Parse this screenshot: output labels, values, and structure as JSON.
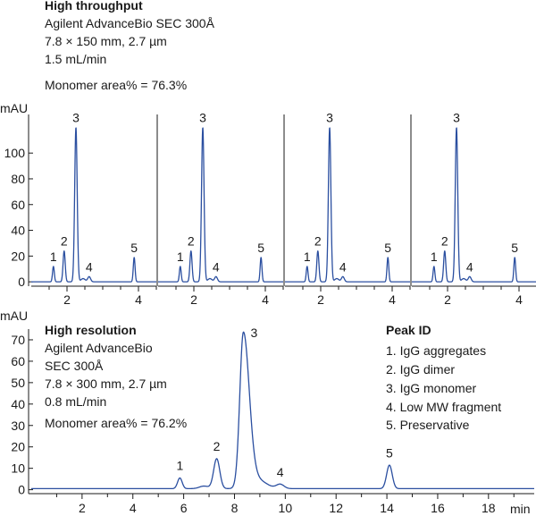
{
  "chart_data": [
    {
      "type": "line",
      "title": "High throughput",
      "annotation_lines": [
        "Agilent AdvanceBio SEC 300Å",
        "7.8 × 150 mm, 2.7 µm",
        "1.5 mL/min"
      ],
      "monomer_note": "Monomer area% = 76.3%",
      "ylabel": "mAU",
      "yticks": [
        0,
        20,
        40,
        60,
        80,
        100
      ],
      "ylim": [
        -2,
        130
      ],
      "xlim": [
        1.0,
        4.5
      ],
      "xticks": [
        2,
        4
      ],
      "repeats": 4,
      "peaks": [
        {
          "label": "1",
          "x": 1.62,
          "y": 12
        },
        {
          "label": "2",
          "x": 1.92,
          "y": 24
        },
        {
          "label": "3",
          "x": 2.25,
          "y": 120
        },
        {
          "label": "4",
          "x": 2.62,
          "y": 4
        },
        {
          "label": "5",
          "x": 3.88,
          "y": 19
        }
      ]
    },
    {
      "type": "line",
      "title": "High resolution",
      "annotation_lines": [
        "Agilent AdvanceBio",
        "SEC 300Å",
        "7.8 × 300 mm, 2.7 µm",
        "0.8 mL/min"
      ],
      "monomer_note": "Monomer area% = 76.2%",
      "ylabel": "mAU",
      "xlabel": "min",
      "yticks": [
        0,
        10,
        20,
        30,
        40,
        50,
        60,
        70
      ],
      "ylim": [
        -1,
        75
      ],
      "xlim": [
        0,
        19.8
      ],
      "xticks": [
        2,
        4,
        6,
        8,
        10,
        12,
        14,
        16,
        18
      ],
      "peaks": [
        {
          "label": "1",
          "x": 5.85,
          "y": 5
        },
        {
          "label": "2",
          "x": 7.3,
          "y": 14
        },
        {
          "label": "3",
          "x": 8.35,
          "y": 72
        },
        {
          "label": "4",
          "x": 9.8,
          "y": 2
        },
        {
          "label": "5",
          "x": 14.1,
          "y": 11
        }
      ]
    }
  ],
  "legend": {
    "title": "Peak ID",
    "items": [
      "1. IgG aggregates",
      "2. IgG dimer",
      "3. IgG monomer",
      "4. Low MW fragment",
      "5. Preservative"
    ]
  }
}
